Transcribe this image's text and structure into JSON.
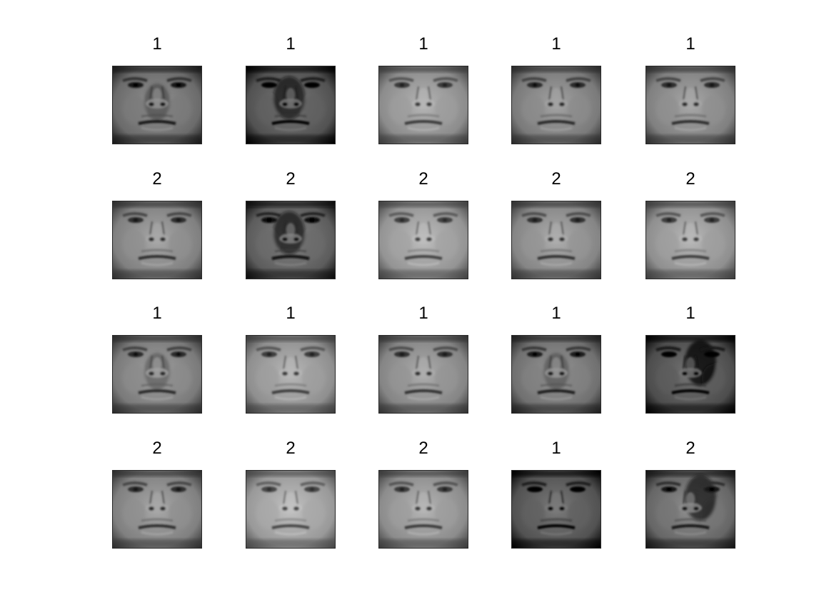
{
  "grid": {
    "rows": 4,
    "cols": 5
  },
  "cells": [
    {
      "label": "1",
      "tone": 0.42,
      "shadow": "center"
    },
    {
      "label": "1",
      "tone": 0.32,
      "shadow": "center-strong"
    },
    {
      "label": "1",
      "tone": 0.55,
      "shadow": "none"
    },
    {
      "label": "1",
      "tone": 0.48,
      "shadow": "none"
    },
    {
      "label": "1",
      "tone": 0.5,
      "shadow": "none"
    },
    {
      "label": "2",
      "tone": 0.5,
      "shadow": "none"
    },
    {
      "label": "2",
      "tone": 0.36,
      "shadow": "center-strong"
    },
    {
      "label": "2",
      "tone": 0.58,
      "shadow": "none"
    },
    {
      "label": "2",
      "tone": 0.52,
      "shadow": "none"
    },
    {
      "label": "2",
      "tone": 0.56,
      "shadow": "none"
    },
    {
      "label": "1",
      "tone": 0.48,
      "shadow": "center"
    },
    {
      "label": "1",
      "tone": 0.56,
      "shadow": "none"
    },
    {
      "label": "1",
      "tone": 0.52,
      "shadow": "none"
    },
    {
      "label": "1",
      "tone": 0.44,
      "shadow": "center"
    },
    {
      "label": "1",
      "tone": 0.3,
      "shadow": "right-strong"
    },
    {
      "label": "2",
      "tone": 0.5,
      "shadow": "none"
    },
    {
      "label": "2",
      "tone": 0.6,
      "shadow": "none"
    },
    {
      "label": "2",
      "tone": 0.55,
      "shadow": "none"
    },
    {
      "label": "1",
      "tone": 0.32,
      "shadow": "none"
    },
    {
      "label": "2",
      "tone": 0.4,
      "shadow": "right-strong"
    }
  ]
}
